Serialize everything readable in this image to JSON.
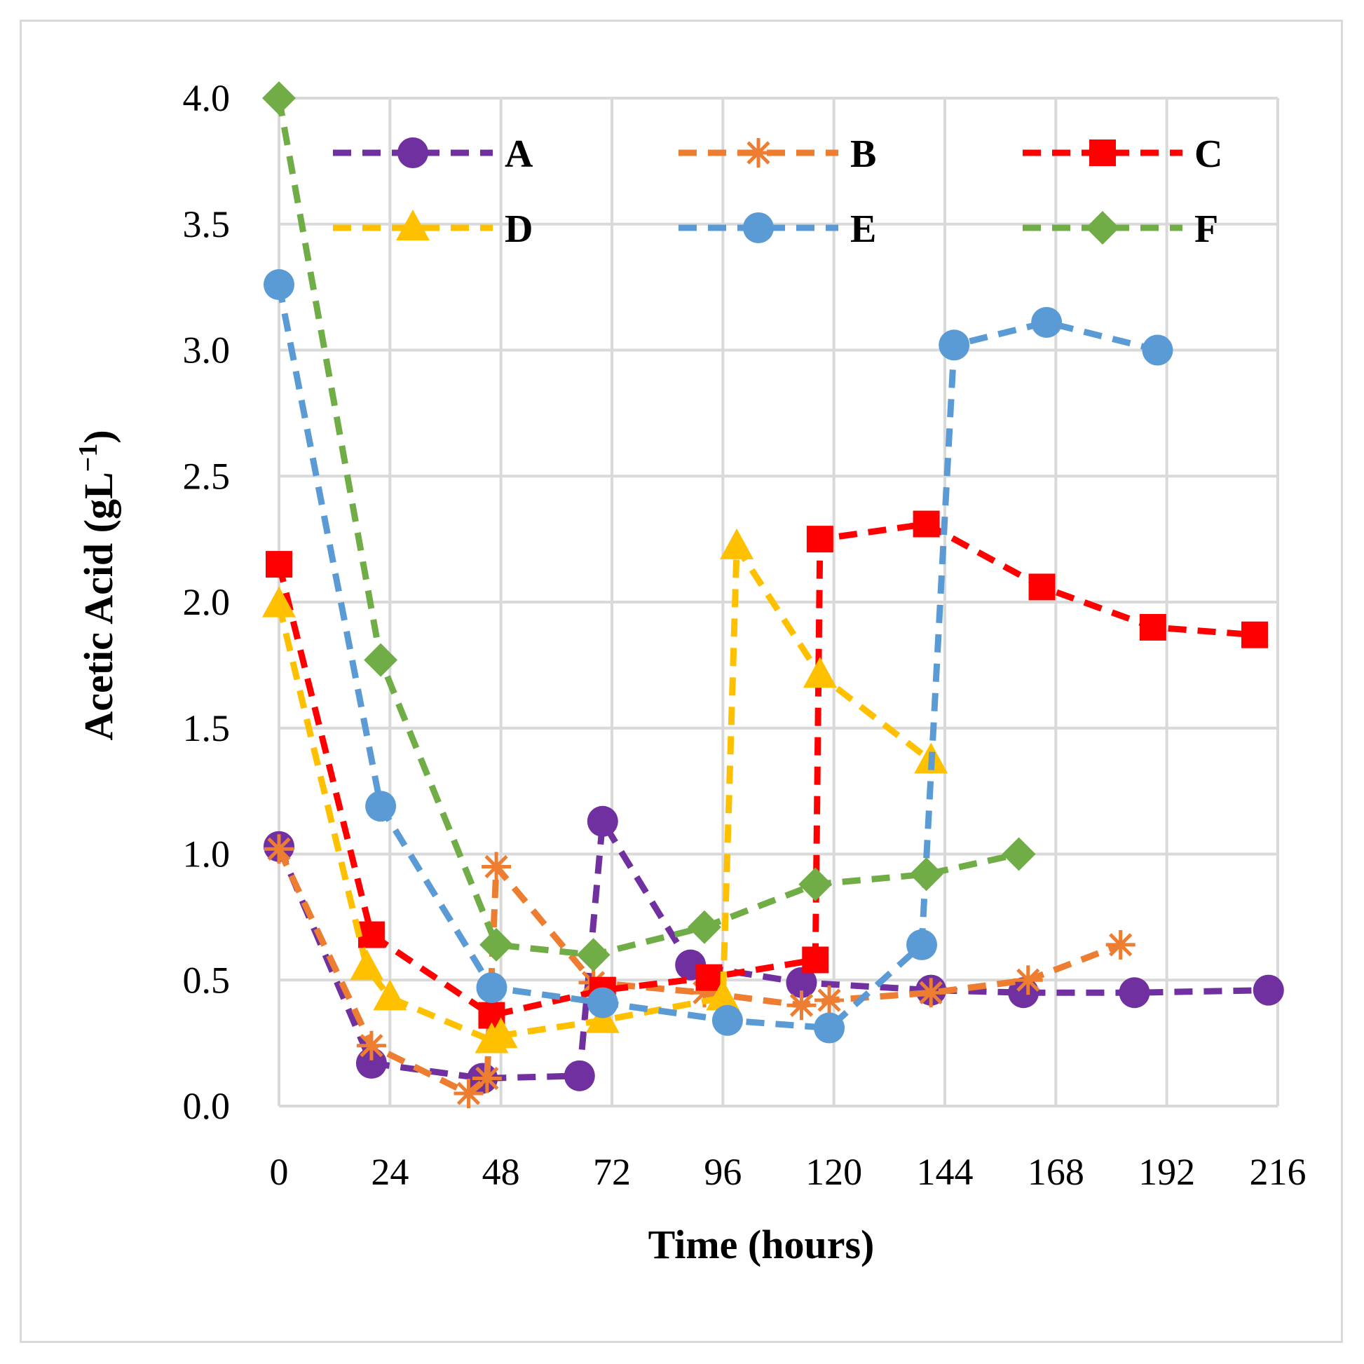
{
  "chart_data": {
    "type": "line",
    "title": "",
    "xlabel": "Time (hours)",
    "ylabel_main": "Acetic Acid (gL",
    "ylabel_sup": "−1",
    "ylabel_end": ")",
    "xlim": [
      0,
      216
    ],
    "ylim": [
      0,
      4
    ],
    "x_ticks": [
      0,
      24,
      48,
      72,
      96,
      120,
      144,
      168,
      192,
      216
    ],
    "x_tick_labels": [
      "0",
      "24",
      "48",
      "72",
      "96",
      "120",
      "144",
      "168",
      "192",
      "216"
    ],
    "y_ticks": [
      0,
      0.5,
      1,
      1.5,
      2,
      2.5,
      3,
      3.5,
      4
    ],
    "y_tick_labels": [
      "0.0",
      "0.5",
      "1.0",
      "1.5",
      "2.0",
      "2.5",
      "3.0",
      "3.5",
      "4.0"
    ],
    "grid": true,
    "legend_position": "top",
    "series": [
      {
        "name": "A",
        "color": "#7030a0",
        "marker": "circle",
        "points": [
          [
            0,
            1.03
          ],
          [
            20,
            0.17
          ],
          [
            44,
            0.11
          ],
          [
            65,
            0.12
          ],
          [
            70,
            1.13
          ],
          [
            89,
            0.56
          ],
          [
            113,
            0.49
          ],
          [
            141,
            0.46
          ],
          [
            161,
            0.45
          ],
          [
            185,
            0.45
          ],
          [
            214,
            0.46
          ]
        ]
      },
      {
        "name": "B",
        "color": "#ed7d31",
        "marker": "star",
        "points": [
          [
            0,
            1.02
          ],
          [
            20,
            0.24
          ],
          [
            41,
            0.05
          ],
          [
            45,
            0.11
          ],
          [
            47,
            0.95
          ],
          [
            68,
            0.49
          ],
          [
            92,
            0.45
          ],
          [
            113,
            0.4
          ],
          [
            119,
            0.42
          ],
          [
            141,
            0.45
          ],
          [
            162,
            0.5
          ],
          [
            182,
            0.64
          ]
        ]
      },
      {
        "name": "C",
        "color": "#ff0000",
        "marker": "square",
        "points": [
          [
            0,
            2.15
          ],
          [
            20,
            0.68
          ],
          [
            46,
            0.36
          ],
          [
            70,
            0.46
          ],
          [
            93,
            0.51
          ],
          [
            116,
            0.58
          ],
          [
            117,
            2.25
          ],
          [
            140,
            2.31
          ],
          [
            165,
            2.06
          ],
          [
            189,
            1.9
          ],
          [
            211,
            1.87
          ]
        ]
      },
      {
        "name": "D",
        "color": "#ffc000",
        "marker": "triangle",
        "points": [
          [
            0,
            1.99
          ],
          [
            19,
            0.55
          ],
          [
            24,
            0.43
          ],
          [
            46,
            0.26
          ],
          [
            48,
            0.28
          ],
          [
            70,
            0.34
          ],
          [
            96,
            0.43
          ],
          [
            99,
            2.22
          ],
          [
            117,
            1.71
          ],
          [
            141,
            1.37
          ]
        ]
      },
      {
        "name": "E",
        "color": "#5b9bd5",
        "marker": "circle",
        "points": [
          [
            0,
            3.26
          ],
          [
            22,
            1.19
          ],
          [
            46,
            0.47
          ],
          [
            70,
            0.41
          ],
          [
            97,
            0.34
          ],
          [
            119,
            0.31
          ],
          [
            139,
            0.64
          ],
          [
            146,
            3.02
          ],
          [
            166,
            3.11
          ],
          [
            190,
            3.0
          ]
        ]
      },
      {
        "name": "F",
        "color": "#70ad47",
        "marker": "diamond",
        "points": [
          [
            0,
            4.0
          ],
          [
            22,
            1.77
          ],
          [
            47,
            0.64
          ],
          [
            68,
            0.6
          ],
          [
            92,
            0.71
          ],
          [
            116,
            0.88
          ],
          [
            140,
            0.92
          ],
          [
            160,
            1.0
          ]
        ]
      }
    ]
  }
}
